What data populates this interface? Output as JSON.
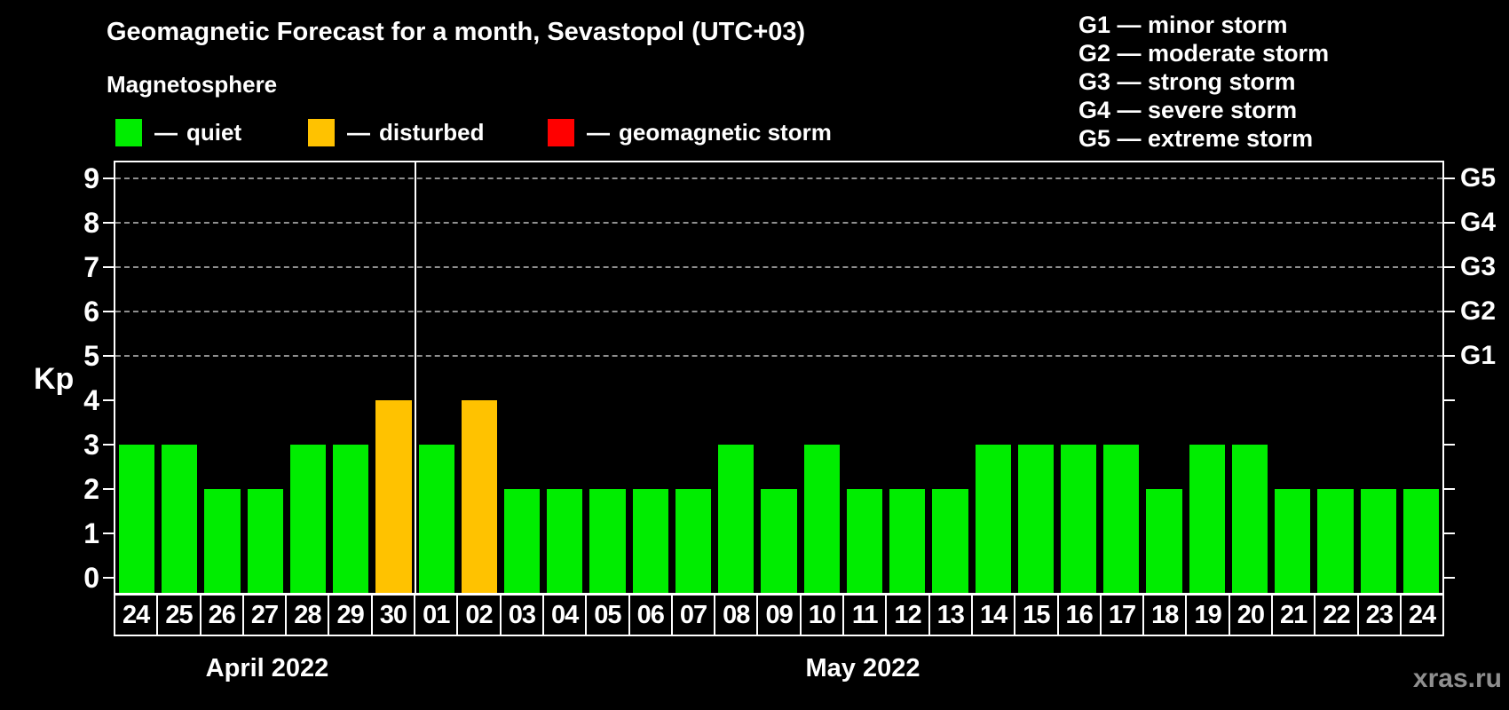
{
  "title": "Geomagnetic Forecast for a month, Sevastopol (UTC+03)",
  "subtitle": "Magnetosphere",
  "legend": {
    "separator": "—",
    "items": [
      {
        "key": "quiet",
        "label": "quiet",
        "color": "#00ed00"
      },
      {
        "key": "disturbed",
        "label": "disturbed",
        "color": "#ffc200"
      },
      {
        "key": "storm",
        "label": "geomagnetic storm",
        "color": "#ff0000"
      }
    ]
  },
  "g_legend": {
    "separator": "—",
    "items": [
      {
        "level": "G1",
        "desc": "minor storm"
      },
      {
        "level": "G2",
        "desc": "moderate storm"
      },
      {
        "level": "G3",
        "desc": "strong storm"
      },
      {
        "level": "G4",
        "desc": "severe storm"
      },
      {
        "level": "G5",
        "desc": "extreme storm"
      }
    ]
  },
  "watermark": "xras.ru",
  "chart_data": {
    "type": "bar",
    "title": "Geomagnetic Forecast for a month, Sevastopol (UTC+03)",
    "ylabel": "Kp",
    "ylim": [
      0,
      9
    ],
    "yticks": [
      0,
      1,
      2,
      3,
      4,
      5,
      6,
      7,
      8,
      9
    ],
    "grid": true,
    "grid_levels": [
      5,
      6,
      7,
      8,
      9
    ],
    "right_axis_labels": [
      {
        "kp": 5,
        "label": "G1"
      },
      {
        "kp": 6,
        "label": "G2"
      },
      {
        "kp": 7,
        "label": "G3"
      },
      {
        "kp": 8,
        "label": "G4"
      },
      {
        "kp": 9,
        "label": "G5"
      }
    ],
    "colors": {
      "quiet": "#00ed00",
      "disturbed": "#ffc200",
      "storm": "#ff0000"
    },
    "color_thresholds": {
      "quiet_max": 3,
      "disturbed_max": 4
    },
    "legend_position": "top-left",
    "months": [
      {
        "label": "April 2022",
        "days": [
          "24",
          "25",
          "26",
          "27",
          "28",
          "29",
          "30"
        ],
        "values": [
          3,
          3,
          2,
          2,
          3,
          3,
          4
        ]
      },
      {
        "label": "May 2022",
        "days": [
          "01",
          "02",
          "03",
          "04",
          "05",
          "06",
          "07",
          "08",
          "09",
          "10",
          "11",
          "12",
          "13",
          "14",
          "15",
          "16",
          "17",
          "18",
          "19",
          "20",
          "21",
          "22",
          "23",
          "24"
        ],
        "values": [
          3,
          4,
          2,
          2,
          2,
          2,
          2,
          3,
          2,
          3,
          2,
          2,
          2,
          3,
          3,
          3,
          3,
          2,
          3,
          3,
          2,
          2,
          2,
          2
        ]
      }
    ]
  }
}
